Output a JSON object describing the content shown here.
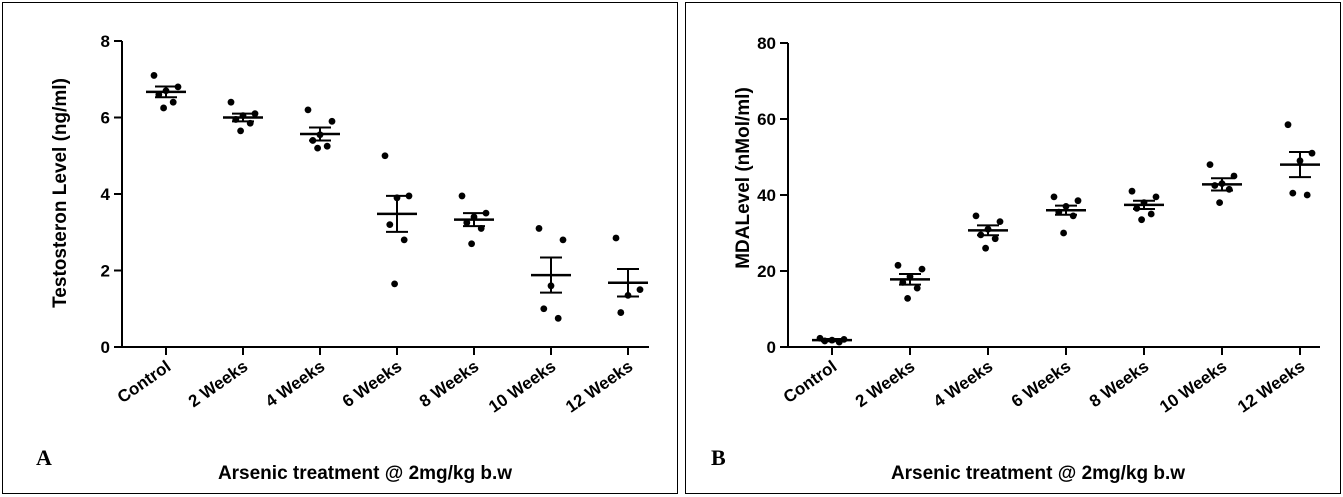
{
  "chart_data": [
    {
      "type": "scatter",
      "panel_label": "A",
      "xlabel": "Arsenic treatment @ 2mg/kg b.w",
      "ylabel": "Testosteron Level (ng/ml)",
      "ylim": [
        0,
        8
      ],
      "yticks": [
        0,
        2,
        4,
        6,
        8
      ],
      "categories": [
        "Control",
        "2 Weeks",
        "4 Weeks",
        "6 Weeks",
        "8 Weeks",
        "10 Weeks",
        "12 Weeks"
      ],
      "means": [
        6.67,
        6.0,
        5.57,
        3.48,
        3.33,
        1.88,
        1.68
      ],
      "sem": [
        0.14,
        0.1,
        0.17,
        0.47,
        0.17,
        0.46,
        0.36
      ],
      "points": [
        [
          7.1,
          6.8,
          6.7,
          6.6,
          6.4,
          6.25
        ],
        [
          6.4,
          6.1,
          6.05,
          5.95,
          5.85,
          5.65
        ],
        [
          6.2,
          5.9,
          5.55,
          5.4,
          5.25,
          5.2
        ],
        [
          5.0,
          3.95,
          3.9,
          3.2,
          2.8,
          1.65
        ],
        [
          3.95,
          3.5,
          3.4,
          3.25,
          3.1,
          2.7
        ],
        [
          3.1,
          2.8,
          1.6,
          1.0,
          0.75
        ],
        [
          2.85,
          1.5,
          1.35,
          0.9
        ]
      ],
      "grid": false
    },
    {
      "type": "scatter",
      "panel_label": "B",
      "xlabel": "Arsenic treatment @ 2mg/kg b.w",
      "ylabel": "MDALevel (nMol/ml)",
      "ylim": [
        0,
        80
      ],
      "yticks": [
        0,
        20,
        40,
        60,
        80
      ],
      "categories": [
        "Control",
        "2 Weeks",
        "4 Weeks",
        "6 Weeks",
        "8 Weeks",
        "10 Weeks",
        "12 Weeks"
      ],
      "means": [
        1.8,
        17.8,
        30.7,
        36.0,
        37.4,
        42.8,
        48.0
      ],
      "sem": [
        0.3,
        1.4,
        1.3,
        1.2,
        1.1,
        1.6,
        3.3
      ],
      "points": [
        [
          2.3,
          2.0,
          1.8,
          1.6,
          1.3
        ],
        [
          21.5,
          20.5,
          18.5,
          17.0,
          15.5,
          12.8
        ],
        [
          34.5,
          33.0,
          31.0,
          29.5,
          28.5,
          26.0
        ],
        [
          39.5,
          38.5,
          37.0,
          35.5,
          34.5,
          30.0
        ],
        [
          41.0,
          39.5,
          38.0,
          36.5,
          35.0,
          33.5
        ],
        [
          48.0,
          45.0,
          43.0,
          42.5,
          41.5,
          38.0
        ],
        [
          58.5,
          51.0,
          49.0,
          40.5,
          40.0
        ]
      ],
      "grid": false
    }
  ]
}
